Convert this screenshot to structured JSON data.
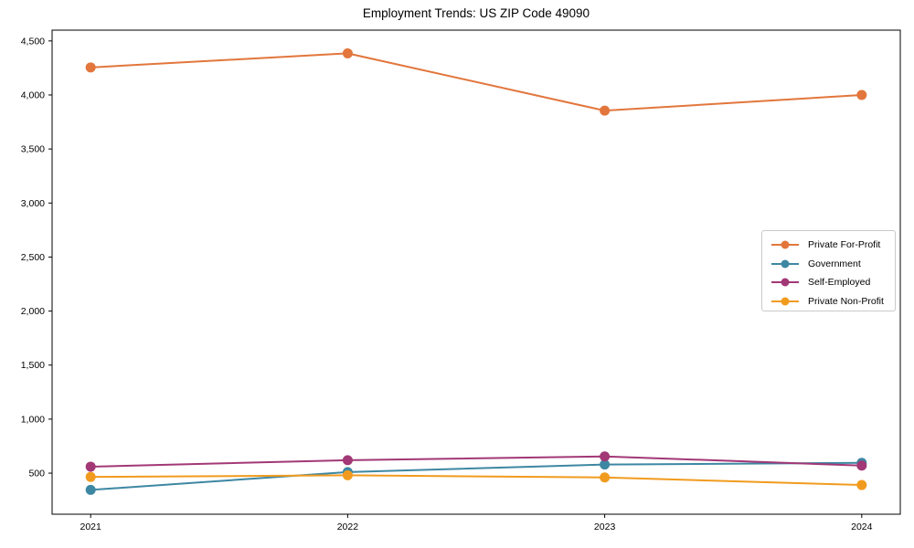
{
  "chart_data": {
    "type": "line",
    "title": "Employment Trends: US ZIP Code 49090",
    "x": [
      2021,
      2022,
      2023,
      2024
    ],
    "x_tick_labels": [
      "2021",
      "2022",
      "2023",
      "2024"
    ],
    "series": [
      {
        "name": "Private For-Profit",
        "color": "#e2763c",
        "values": [
          4255,
          4385,
          3855,
          4000
        ]
      },
      {
        "name": "Government",
        "color": "#3d87a3",
        "values": [
          345,
          510,
          580,
          595
        ]
      },
      {
        "name": "Self-Employed",
        "color": "#a23876",
        "values": [
          560,
          620,
          655,
          570
        ]
      },
      {
        "name": "Private Non-Profit",
        "color": "#f19b1e",
        "values": [
          465,
          480,
          460,
          390
        ]
      }
    ],
    "yticks": [
      500,
      1000,
      1500,
      2000,
      2500,
      3000,
      3500,
      4000,
      4500
    ],
    "ytick_labels": [
      "500",
      "1,000",
      "1,500",
      "2,000",
      "2,500",
      "3,000",
      "3,500",
      "4,000",
      "4,500"
    ],
    "xlim": [
      2020.85,
      2024.15
    ],
    "ylim": [
      120,
      4600
    ],
    "grid": false,
    "legend": {
      "position": "right-middle",
      "entries": [
        "Private For-Profit",
        "Government",
        "Self-Employed",
        "Private Non-Profit"
      ]
    },
    "frame_color": "#000000",
    "background": "#ffffff"
  }
}
